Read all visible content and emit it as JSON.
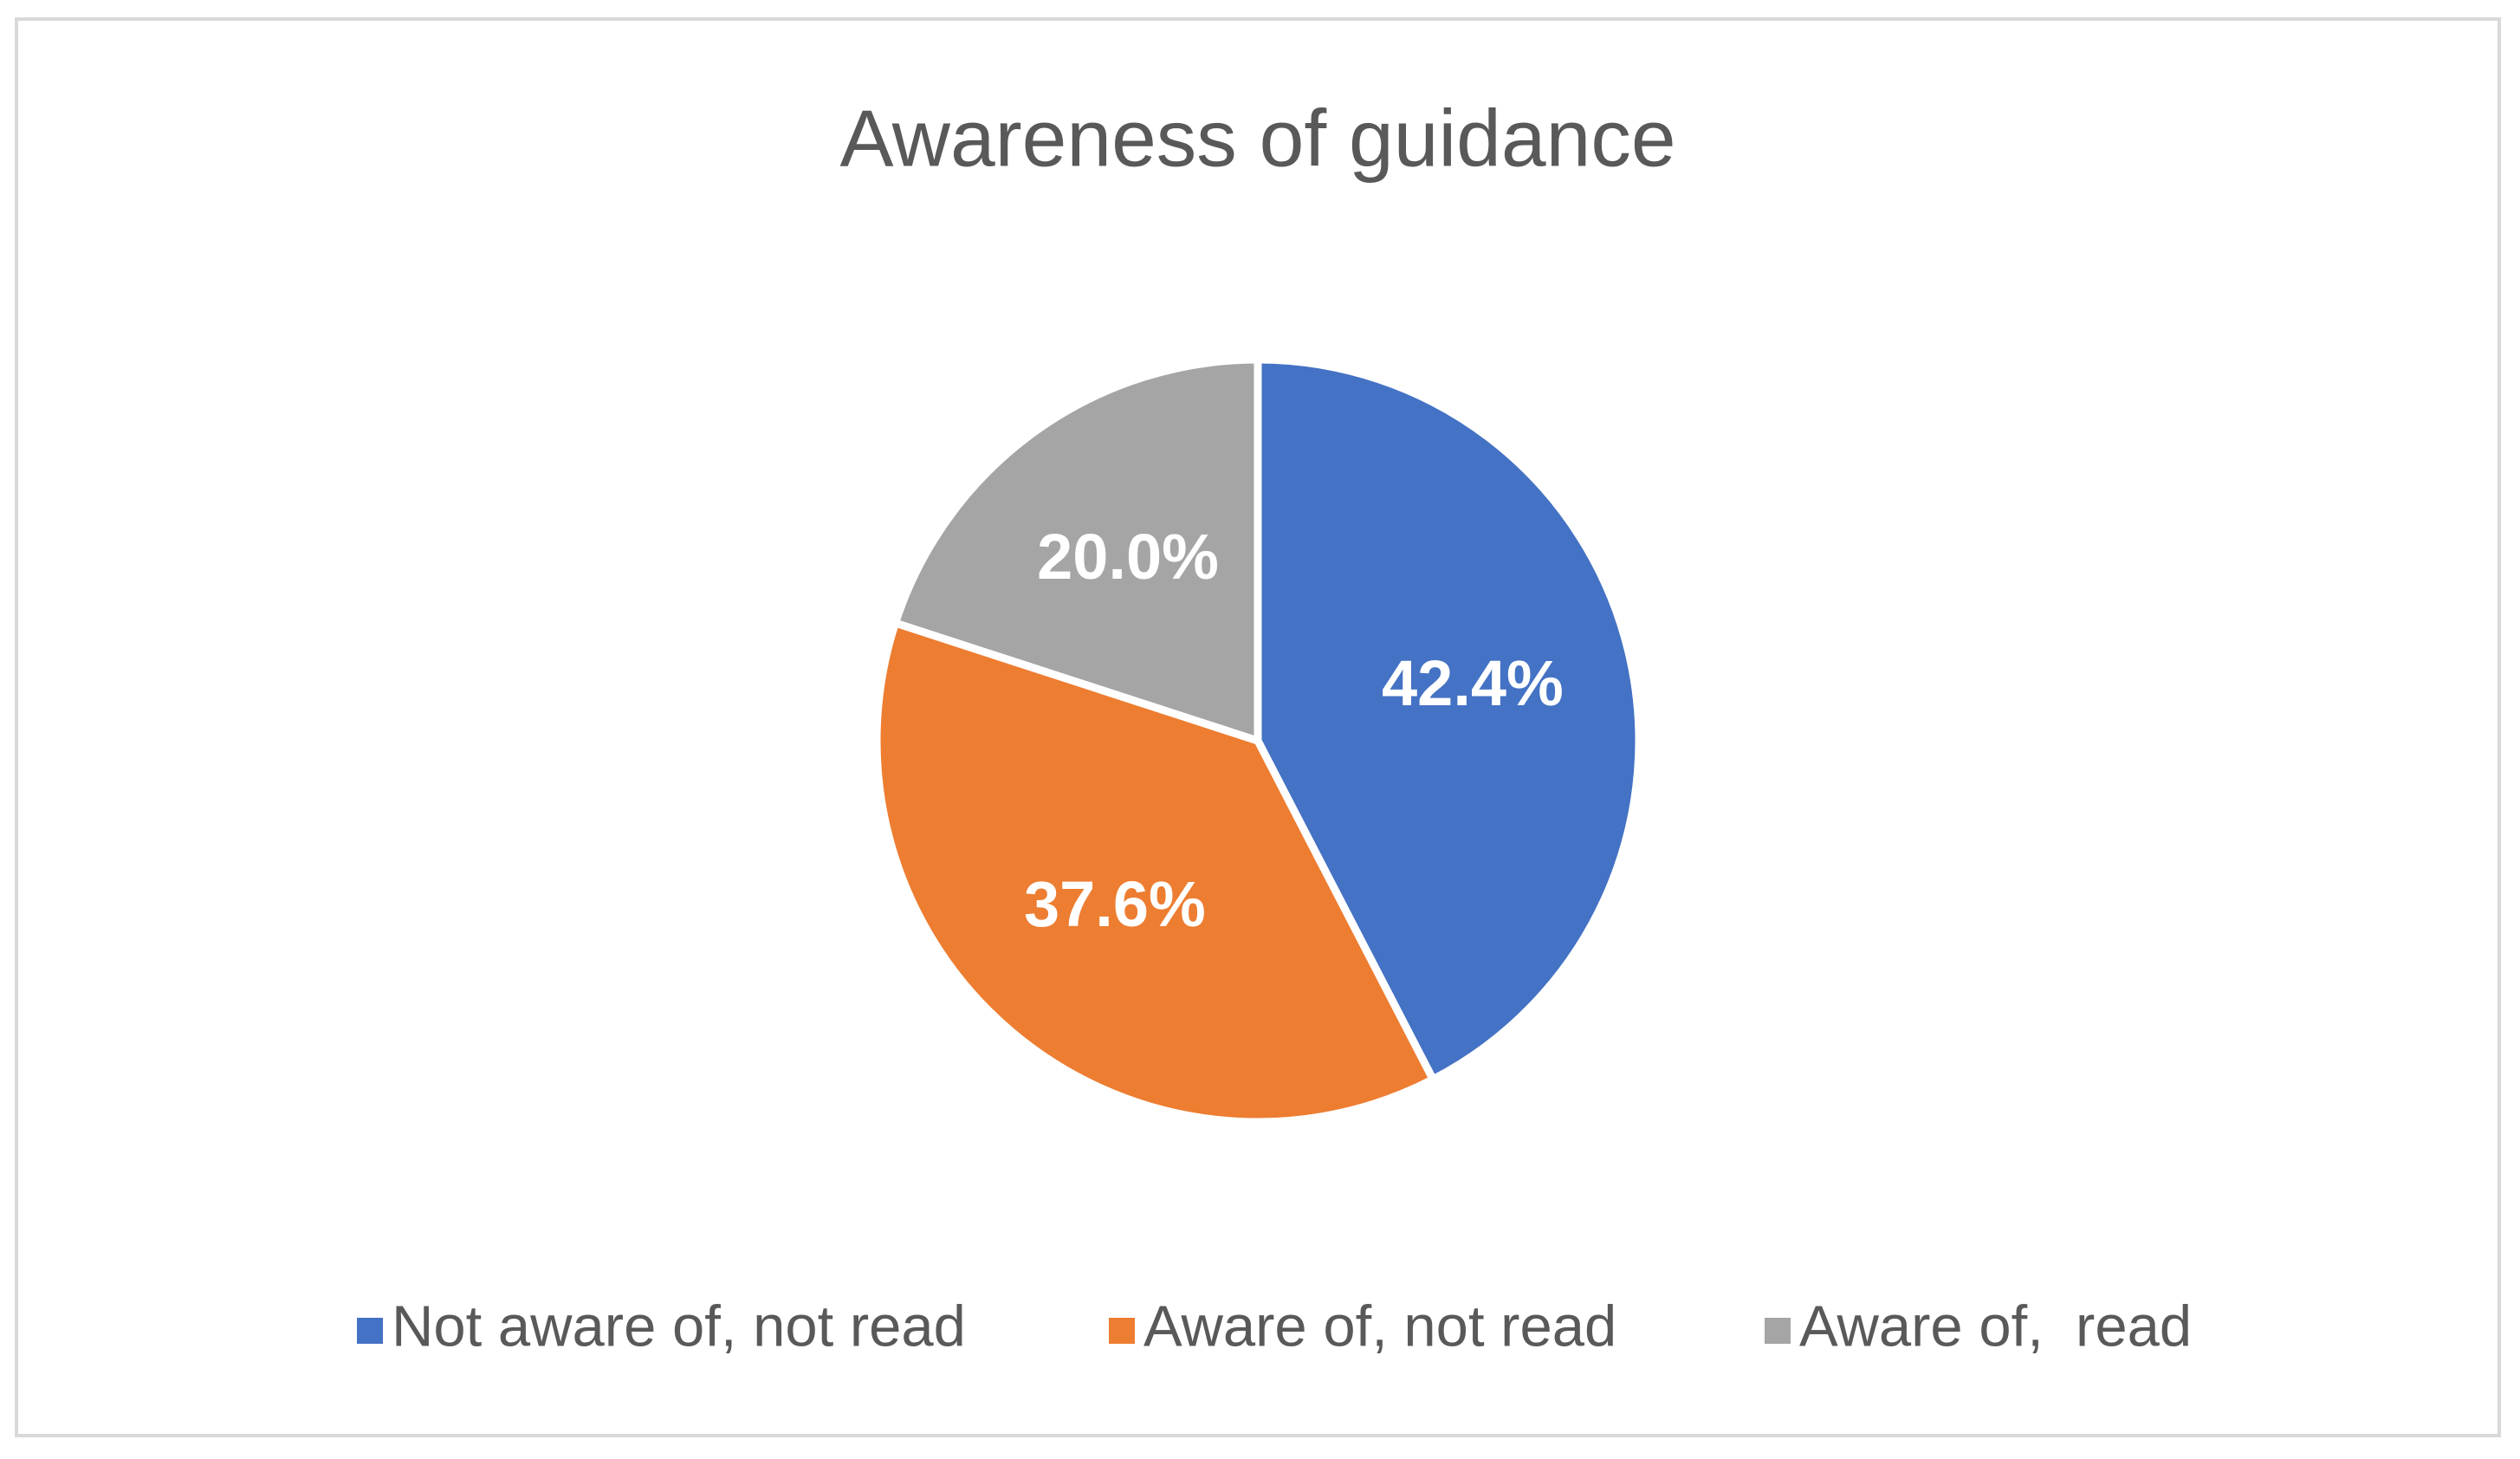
{
  "chart_data": {
    "type": "pie",
    "title": "Awareness of guidance",
    "categories": [
      "Not aware of, not read",
      "Aware of, not read",
      "Aware of,  read"
    ],
    "values": [
      42.4,
      37.6,
      20.0
    ],
    "value_labels": [
      "42.4%",
      "37.6%",
      "20.0%"
    ],
    "colors": [
      "#4472c4",
      "#ed7d31",
      "#a5a5a5"
    ],
    "legend": "bottom"
  }
}
